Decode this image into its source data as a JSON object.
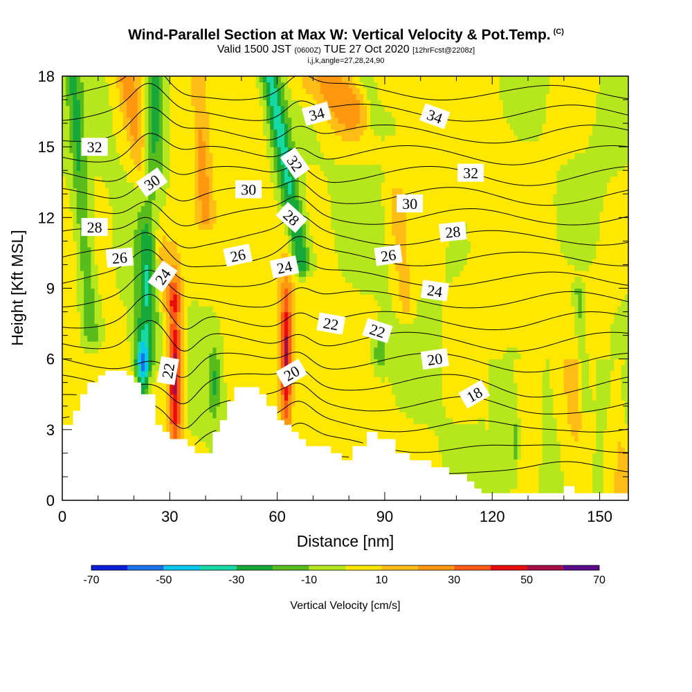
{
  "title": {
    "main": "Wind-Parallel Section at Max W: Vertical Velocity & Pot.Temp.",
    "tag": "(C)",
    "valid_prefix": "Valid 1500 JST",
    "valid_utc": "(0600Z)",
    "valid_date": "TUE 27 Oct 2020",
    "forecast": "[12hrFcst@2208z]",
    "indices": "i,j,k,angle=27,28,24,90"
  },
  "chart_data": {
    "type": "heatmap",
    "title": "Wind-Parallel Section at Max W: Vertical Velocity & Pot.Temp.",
    "xlabel": "Distance [nm]",
    "ylabel": "Height [Kft MSL]",
    "xlim": [
      0,
      158
    ],
    "ylim": [
      0,
      18
    ],
    "x_ticks": [
      0,
      30,
      60,
      90,
      120,
      150
    ],
    "y_ticks": [
      0,
      3,
      6,
      9,
      12,
      15,
      18
    ],
    "grid": false,
    "colorbar": {
      "label": "Vertical Velocity [cm/s]",
      "tick_values": [
        -70,
        -50,
        -30,
        -10,
        10,
        30,
        50,
        70
      ],
      "tick_labels": [
        "-70",
        "-50",
        "-30",
        "-10",
        "10",
        "30",
        "50",
        "70"
      ],
      "bins": [
        {
          "min": -70,
          "max": -60,
          "color": "#0b1fd8"
        },
        {
          "min": -60,
          "max": -50,
          "color": "#1a73e8"
        },
        {
          "min": -50,
          "max": -40,
          "color": "#09c8f0"
        },
        {
          "min": -40,
          "max": -30,
          "color": "#17d9a6"
        },
        {
          "min": -30,
          "max": -20,
          "color": "#16a93a"
        },
        {
          "min": -20,
          "max": -10,
          "color": "#58bc1c"
        },
        {
          "min": -10,
          "max": 0,
          "color": "#b6e61e"
        },
        {
          "min": 0,
          "max": 10,
          "color": "#ffe800"
        },
        {
          "min": 10,
          "max": 20,
          "color": "#ffbd16"
        },
        {
          "min": 20,
          "max": 30,
          "color": "#ff9711"
        },
        {
          "min": 30,
          "max": 40,
          "color": "#ff5a16"
        },
        {
          "min": 40,
          "max": 50,
          "color": "#ea0b0b"
        },
        {
          "min": 50,
          "max": 60,
          "color": "#a70d45"
        },
        {
          "min": 60,
          "max": 70,
          "color": "#5a0a8a"
        }
      ]
    },
    "terrain_x": [
      0,
      3,
      3,
      5,
      5,
      7,
      7,
      10,
      10,
      12,
      12,
      14,
      14,
      18,
      18,
      20,
      20,
      22,
      22,
      24,
      24,
      26,
      26,
      28,
      28,
      30,
      30,
      32,
      32,
      35,
      35,
      37,
      37,
      39,
      39,
      42,
      42,
      44,
      44,
      46,
      46,
      48,
      48,
      49,
      49,
      55,
      55,
      57,
      57,
      60,
      60,
      62,
      62,
      64,
      64,
      66,
      66,
      68,
      68,
      71,
      71,
      75,
      75,
      78,
      78,
      81,
      81,
      85,
      85,
      88,
      88,
      93,
      93,
      97,
      97,
      103,
      103,
      108,
      108,
      113,
      113,
      115,
      115,
      117,
      117,
      119,
      119,
      140,
      140,
      143,
      143,
      158
    ],
    "terrain_y": [
      3.2,
      3.2,
      3.8,
      3.8,
      4.5,
      4.5,
      5.0,
      5.0,
      5.3,
      5.3,
      5.5,
      5.5,
      5.5,
      5.5,
      5.3,
      5.3,
      5.0,
      5.0,
      4.5,
      4.5,
      4.5,
      4.5,
      3.2,
      3.2,
      2.9,
      2.9,
      2.6,
      2.6,
      2.6,
      2.6,
      2.3,
      2.3,
      2.0,
      2.0,
      2.0,
      2.0,
      2.9,
      2.9,
      3.4,
      3.4,
      4.2,
      4.2,
      4.8,
      4.8,
      4.8,
      4.8,
      4.5,
      4.5,
      4.0,
      4.0,
      3.4,
      3.4,
      3.2,
      3.2,
      2.9,
      2.9,
      2.6,
      2.6,
      2.3,
      2.3,
      2.3,
      2.3,
      2.0,
      2.0,
      1.7,
      1.7,
      2.3,
      2.3,
      2.9,
      2.9,
      2.6,
      2.6,
      2.0,
      2.0,
      1.7,
      1.7,
      1.4,
      1.4,
      1.1,
      1.1,
      0.8,
      0.8,
      0.5,
      0.5,
      0.3,
      0.3,
      0.3,
      0.3,
      0.6,
      0.6,
      0.3,
      0.3
    ],
    "w_field_features": [
      {
        "kind": "updraft",
        "x": 31.5,
        "y": 5.4,
        "peak": 55,
        "sx": 1.4,
        "sy": 2.6
      },
      {
        "kind": "updraft",
        "x": 62.5,
        "y": 6.1,
        "peak": 50,
        "sx": 1.2,
        "sy": 2.4
      },
      {
        "kind": "updraft_band",
        "x0": 30,
        "y0": 8.5,
        "x1": 18,
        "y1": 18,
        "peak": 22,
        "width": 2.2
      },
      {
        "kind": "updraft_band",
        "x0": 40,
        "y0": 12,
        "x1": 38,
        "y1": 18,
        "peak": 18,
        "width": 1.6
      },
      {
        "kind": "updraft_band",
        "x0": 80,
        "y0": 16.5,
        "x1": 72,
        "y1": 18,
        "peak": 25,
        "width": 5
      },
      {
        "kind": "updraft_band",
        "x0": 96,
        "y0": 8,
        "x1": 93,
        "y1": 13,
        "peak": 14,
        "width": 1.6
      },
      {
        "kind": "downdraft_band",
        "x0": 23,
        "y0": 6,
        "x1": 26,
        "y1": 18,
        "peak": -30,
        "width": 2.2
      },
      {
        "kind": "downdraft_band",
        "x0": 8,
        "y0": 7,
        "x1": 3,
        "y1": 18,
        "peak": -20,
        "width": 1.5
      },
      {
        "kind": "downdraft_band",
        "x0": 67,
        "y0": 10,
        "x1": 58,
        "y1": 18,
        "peak": -35,
        "width": 2.0
      },
      {
        "kind": "downdraft_band",
        "x0": 88,
        "y0": 16,
        "x1": 84,
        "y1": 18,
        "peak": -15,
        "width": 2.2
      },
      {
        "kind": "downdraft_band",
        "x0": 146,
        "y0": 4,
        "x1": 144,
        "y1": 9,
        "peak": -15,
        "width": 1.1
      },
      {
        "kind": "downdraft",
        "x": 22.5,
        "y": 5.4,
        "peak": -40,
        "sx": 1.3,
        "sy": 0.9
      },
      {
        "kind": "downdraft",
        "x": 42.5,
        "y": 5.0,
        "peak": -20,
        "sx": 1.0,
        "sy": 1.2
      },
      {
        "kind": "downdraft",
        "x": 88.5,
        "y": 6.3,
        "peak": -20,
        "sx": 1.3,
        "sy": 0.6
      },
      {
        "kind": "downdraft",
        "x": 126.5,
        "y": 2.3,
        "peak": -16,
        "sx": 0.8,
        "sy": 1.2
      },
      {
        "kind": "downdraft",
        "x": 157.5,
        "y": 4.5,
        "peak": -15,
        "sx": 0.8,
        "sy": 1.2
      }
    ],
    "theta_contours": {
      "levels": [
        17,
        18,
        19,
        20,
        21,
        22,
        23,
        24,
        25,
        26,
        27,
        28,
        29,
        30,
        31,
        32,
        33,
        34,
        35
      ],
      "labeled": [
        {
          "text": "18",
          "x": 115,
          "y": 4.5,
          "rot": -30
        },
        {
          "text": "20",
          "x": 64,
          "y": 5.4,
          "rot": -30
        },
        {
          "text": "20",
          "x": 104,
          "y": 6.0,
          "rot": -8
        },
        {
          "text": "22",
          "x": 29.5,
          "y": 5.5,
          "rot": -80
        },
        {
          "text": "22",
          "x": 75,
          "y": 7.5,
          "rot": 10
        },
        {
          "text": "22",
          "x": 88,
          "y": 7.2,
          "rot": 18
        },
        {
          "text": "24",
          "x": 28,
          "y": 9.5,
          "rot": -55
        },
        {
          "text": "24",
          "x": 62,
          "y": 9.9,
          "rot": -12
        },
        {
          "text": "24",
          "x": 104,
          "y": 8.9,
          "rot": 8
        },
        {
          "text": "26",
          "x": 16,
          "y": 10.3,
          "rot": -5
        },
        {
          "text": "26",
          "x": 49,
          "y": 10.4,
          "rot": -12
        },
        {
          "text": "26",
          "x": 91,
          "y": 10.4,
          "rot": -8
        },
        {
          "text": "28",
          "x": 9,
          "y": 11.6,
          "rot": 0
        },
        {
          "text": "28",
          "x": 64,
          "y": 12.0,
          "rot": 42
        },
        {
          "text": "28",
          "x": 109,
          "y": 11.4,
          "rot": -6
        },
        {
          "text": "30",
          "x": 25,
          "y": 13.5,
          "rot": -35
        },
        {
          "text": "30",
          "x": 52,
          "y": 13.2,
          "rot": 0
        },
        {
          "text": "30",
          "x": 97,
          "y": 12.6,
          "rot": 0
        },
        {
          "text": "32",
          "x": 9,
          "y": 15.0,
          "rot": 0
        },
        {
          "text": "32",
          "x": 65,
          "y": 14.3,
          "rot": 55
        },
        {
          "text": "32",
          "x": 114,
          "y": 13.9,
          "rot": 0
        },
        {
          "text": "34",
          "x": 71,
          "y": 16.4,
          "rot": -15
        },
        {
          "text": "34",
          "x": 104,
          "y": 16.3,
          "rot": 20
        }
      ]
    }
  }
}
